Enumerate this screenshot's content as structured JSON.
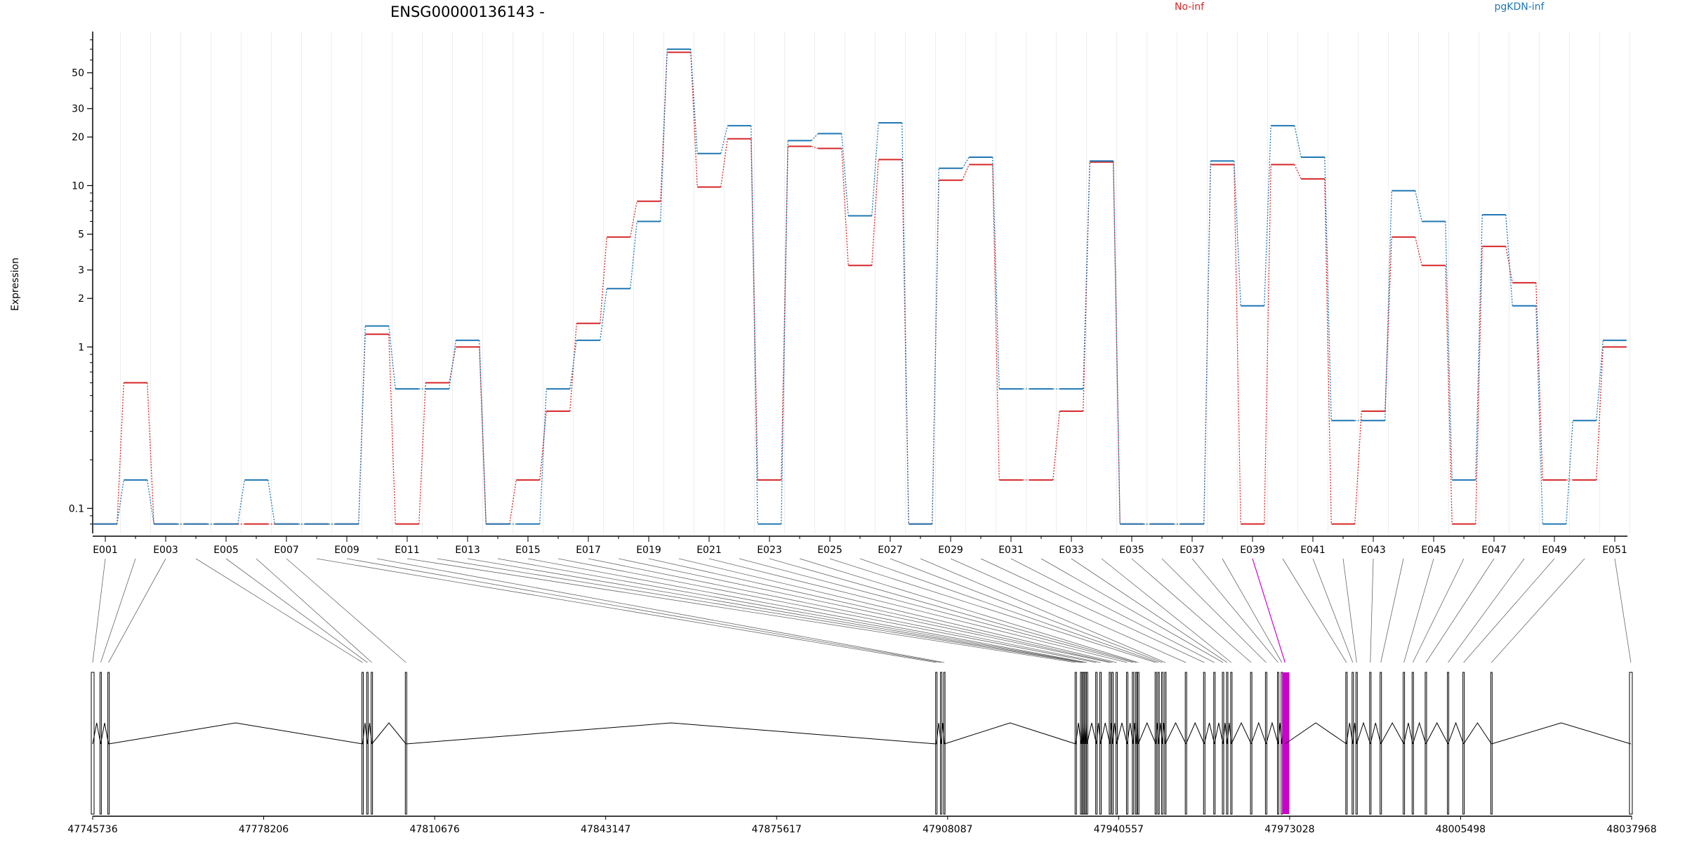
{
  "chart_data": {
    "type": "line",
    "title": "ENSG00000136143 -",
    "ylabel": "Expression",
    "y_scale": "log",
    "grid": true,
    "legend_placement": "top",
    "y_ticks": [
      0.1,
      1,
      2,
      3,
      5,
      10,
      20,
      30,
      50
    ],
    "y_tick_labels": [
      "0.1",
      "1",
      "2",
      "3",
      "5",
      "10",
      "20",
      "30",
      "50"
    ],
    "ylim": [
      0.07,
      90
    ],
    "categories": [
      "E001",
      "E002",
      "E003",
      "E004",
      "E005",
      "E006",
      "E007",
      "E008",
      "E009",
      "E010",
      "E011",
      "E012",
      "E013",
      "E014",
      "E015",
      "E016",
      "E017",
      "E018",
      "E019",
      "E020",
      "E021",
      "E022",
      "E023",
      "E024",
      "E025",
      "E026",
      "E027",
      "E028",
      "E029",
      "E030",
      "E031",
      "E032",
      "E033",
      "E034",
      "E035",
      "E036",
      "E037",
      "E038",
      "E039",
      "E040",
      "E041",
      "E042",
      "E043",
      "E044",
      "E045",
      "E046",
      "E047",
      "E048",
      "E049",
      "E050",
      "E051"
    ],
    "x_tick_labels": [
      "E001",
      "E003",
      "E005",
      "E007",
      "E009",
      "E011",
      "E013",
      "E015",
      "E017",
      "E019",
      "E021",
      "E023",
      "E025",
      "E027",
      "E029",
      "E031",
      "E033",
      "E035",
      "E037",
      "E039",
      "E041",
      "E043",
      "E045",
      "E047",
      "E049",
      "E051"
    ],
    "series": [
      {
        "name": "No-inf",
        "color": "#d62728",
        "values": [
          0.08,
          0.6,
          0.08,
          0.08,
          0.08,
          0.08,
          0.08,
          0.08,
          0.08,
          1.2,
          0.08,
          0.6,
          1.0,
          0.08,
          0.15,
          0.4,
          1.4,
          4.8,
          8.0,
          67,
          9.8,
          19.5,
          0.15,
          17.5,
          17,
          3.2,
          14.5,
          0.08,
          10.8,
          13.5,
          0.15,
          0.15,
          0.4,
          14,
          0.08,
          0.08,
          0.08,
          13.5,
          0.08,
          13.5,
          11,
          0.08,
          0.4,
          4.8,
          3.2,
          0.08,
          4.2,
          2.5,
          0.15,
          0.15,
          1.0
        ]
      },
      {
        "name": "pgKDN-inf",
        "color": "#1f77b4",
        "values": [
          0.08,
          0.15,
          0.08,
          0.08,
          0.08,
          0.15,
          0.08,
          0.08,
          0.08,
          1.35,
          0.55,
          0.55,
          1.1,
          0.08,
          0.08,
          0.55,
          1.1,
          2.3,
          6.0,
          70,
          15.8,
          23.5,
          0.08,
          19,
          21,
          6.5,
          24.5,
          0.08,
          12.8,
          15,
          0.55,
          0.55,
          0.55,
          14.2,
          0.08,
          0.08,
          0.08,
          14.2,
          1.8,
          23.5,
          15,
          0.35,
          0.35,
          9.3,
          6.0,
          0.15,
          6.6,
          1.8,
          0.08,
          0.35,
          1.1
        ]
      }
    ]
  },
  "genome_track": {
    "coord_labels": [
      "47745736",
      "47778206",
      "47810676",
      "47843147",
      "47875617",
      "47908087",
      "47940557",
      "47973028",
      "48005498",
      "48037968"
    ],
    "coord_range": [
      47745736,
      48037968
    ],
    "highlight_exon": "E039",
    "highlight_color": "#cc00cc"
  }
}
